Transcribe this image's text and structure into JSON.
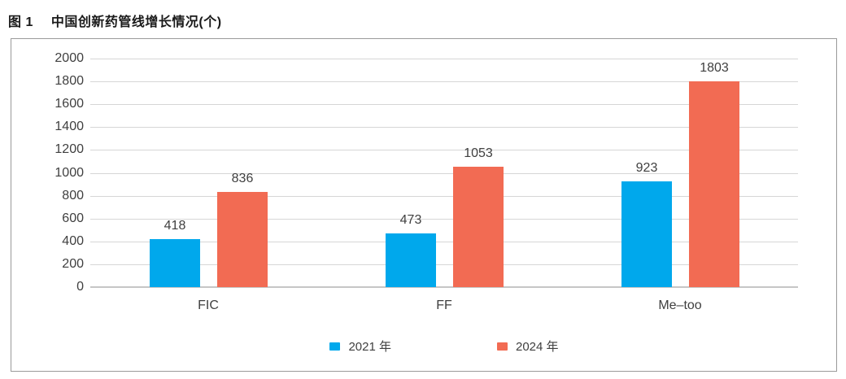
{
  "caption": {
    "label": "图 1",
    "title": "中国创新药管线增长情况(个)"
  },
  "chart_data": {
    "type": "bar",
    "title": "图 1 中国创新药管线增长情况(个)",
    "categories": [
      "FIC",
      "FF",
      "Me–too"
    ],
    "series": [
      {
        "name": "2021 年",
        "color": "#00A8EC",
        "values": [
          418,
          473,
          923
        ]
      },
      {
        "name": "2024 年",
        "color": "#F26B53",
        "values": [
          836,
          1053,
          1803
        ]
      }
    ],
    "xlabel": "",
    "ylabel": "",
    "ylim": [
      0,
      2000
    ],
    "ytick_step": 200,
    "grid": true,
    "legend_position": "bottom-center"
  },
  "colors": {
    "series_2021": "#00A8EC",
    "series_2024": "#F26B53",
    "gridline": "#D6D6D6",
    "axis_baseline": "#C6C6C6",
    "box_border": "#9A9A9A",
    "text": "#3F3F3F"
  }
}
